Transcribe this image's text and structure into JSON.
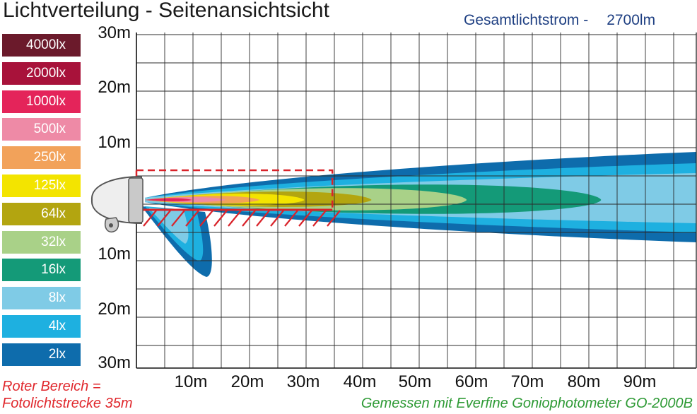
{
  "title": "Lichtverteilung - Seitenansichtsicht",
  "flux": {
    "label": "Gesamtlichtstrom  -",
    "value": "2700lm"
  },
  "legend": [
    {
      "label": "4000lx",
      "color": "#6b1a2b"
    },
    {
      "label": "2000lx",
      "color": "#a8123a"
    },
    {
      "label": "1000lx",
      "color": "#e4245a"
    },
    {
      "label": "500lx",
      "color": "#ee8aa6"
    },
    {
      "label": "250lx",
      "color": "#f2a25a"
    },
    {
      "label": "125lx",
      "color": "#f3e400"
    },
    {
      "label": "64lx",
      "color": "#b3a510"
    },
    {
      "label": "32lx",
      "color": "#a9d188"
    },
    {
      "label": "16lx",
      "color": "#149a78"
    },
    {
      "label": "8lx",
      "color": "#7fcbe6"
    },
    {
      "label": "4lx",
      "color": "#1eb0e0"
    },
    {
      "label": "2lx",
      "color": "#0e6cac"
    }
  ],
  "chart_data": {
    "type": "heatmap",
    "title": "Lichtverteilung - Seitenansichtsicht",
    "x_ticks": [
      "10m",
      "20m",
      "30m",
      "40m",
      "50m",
      "60m",
      "70m",
      "80m",
      "90m"
    ],
    "y_ticks": [
      "30m",
      "20m",
      "10m",
      "10m",
      "20m",
      "30m"
    ],
    "xlim": [
      0,
      100
    ],
    "ylim": [
      -30,
      30
    ],
    "grid": true,
    "series": [
      {
        "level": "2lx",
        "reach_m": 100,
        "spread_m": 8
      },
      {
        "level": "4lx",
        "reach_m": 100,
        "spread_m": 6
      },
      {
        "level": "8lx",
        "reach_m": 100,
        "spread_m": 4
      },
      {
        "level": "16lx",
        "reach_m": 83,
        "spread_m": 2.5
      },
      {
        "level": "32lx",
        "reach_m": 59,
        "spread_m": 2
      },
      {
        "level": "64lx",
        "reach_m": 42,
        "spread_m": 1.5
      },
      {
        "level": "125lx",
        "reach_m": 30,
        "spread_m": 1
      },
      {
        "level": "250lx",
        "reach_m": 22,
        "spread_m": 0.6
      },
      {
        "level": "500lx",
        "reach_m": 16,
        "spread_m": 0.4
      },
      {
        "level": "1000lx",
        "reach_m": 10,
        "spread_m": 0.2
      }
    ],
    "red_zone_reach_m": 35
  },
  "notes": {
    "red_line1": "Roter Bereich =",
    "red_line2": "Fotolichtstrecke 35m",
    "green": "Gemessen mit Everfine Goniophotometer GO-2000B"
  }
}
